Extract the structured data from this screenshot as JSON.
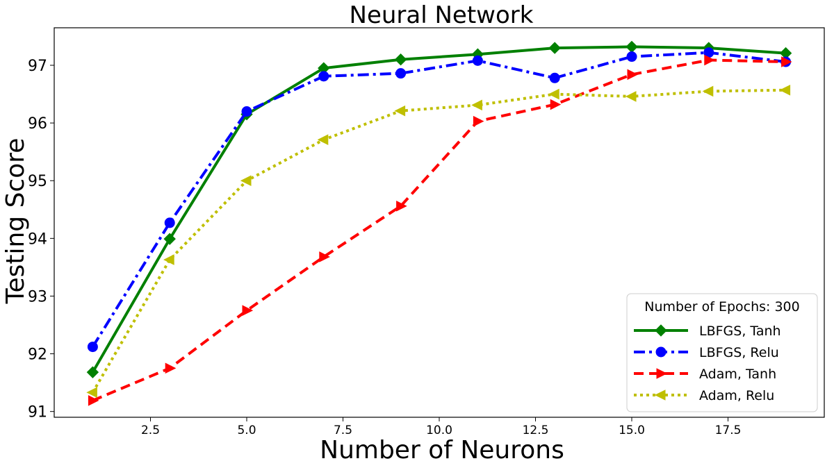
{
  "chart_data": {
    "type": "line",
    "title": "Neural Network",
    "xlabel": "Number of Neurons",
    "ylabel": "Testing Score",
    "xlim": [
      0.0,
      20.0
    ],
    "ylim": [
      90.9,
      97.65
    ],
    "xticks": [
      2.5,
      5.0,
      7.5,
      10.0,
      12.5,
      15.0,
      17.5
    ],
    "xtick_labels": [
      "2.5",
      "5.0",
      "7.5",
      "10.0",
      "12.5",
      "15.0",
      "17.5"
    ],
    "yticks": [
      91,
      92,
      93,
      94,
      95,
      96,
      97
    ],
    "ytick_labels": [
      "91",
      "92",
      "93",
      "94",
      "95",
      "96",
      "97"
    ],
    "grid": false,
    "legend": {
      "title": "Number of Epochs: 300",
      "placement": "lower right"
    },
    "x": [
      1,
      3,
      5,
      7,
      9,
      11,
      13,
      15,
      17,
      19
    ],
    "series": [
      {
        "name": "LBFGS, Tanh",
        "color": "#008000",
        "linestyle": "solid",
        "marker": "diamond",
        "values": [
          91.68,
          93.99,
          96.15,
          96.95,
          97.1,
          97.19,
          97.3,
          97.32,
          97.3,
          97.21
        ]
      },
      {
        "name": "LBFGS, Relu",
        "color": "#0000ff",
        "linestyle": "dashdot",
        "marker": "circle",
        "values": [
          92.12,
          94.27,
          96.2,
          96.81,
          96.86,
          97.08,
          96.78,
          97.15,
          97.22,
          97.06
        ]
      },
      {
        "name": "Adam, Tanh",
        "color": "#ff0000",
        "linestyle": "dashed",
        "marker": "triangle-right",
        "values": [
          91.19,
          91.75,
          92.75,
          93.68,
          94.56,
          96.03,
          96.32,
          96.84,
          97.09,
          97.06
        ]
      },
      {
        "name": "Adam, Relu",
        "color": "#bfbf00",
        "linestyle": "dotted",
        "marker": "triangle-left",
        "values": [
          91.33,
          93.63,
          95.0,
          95.71,
          96.21,
          96.31,
          96.5,
          96.46,
          96.55,
          96.57
        ]
      }
    ]
  }
}
